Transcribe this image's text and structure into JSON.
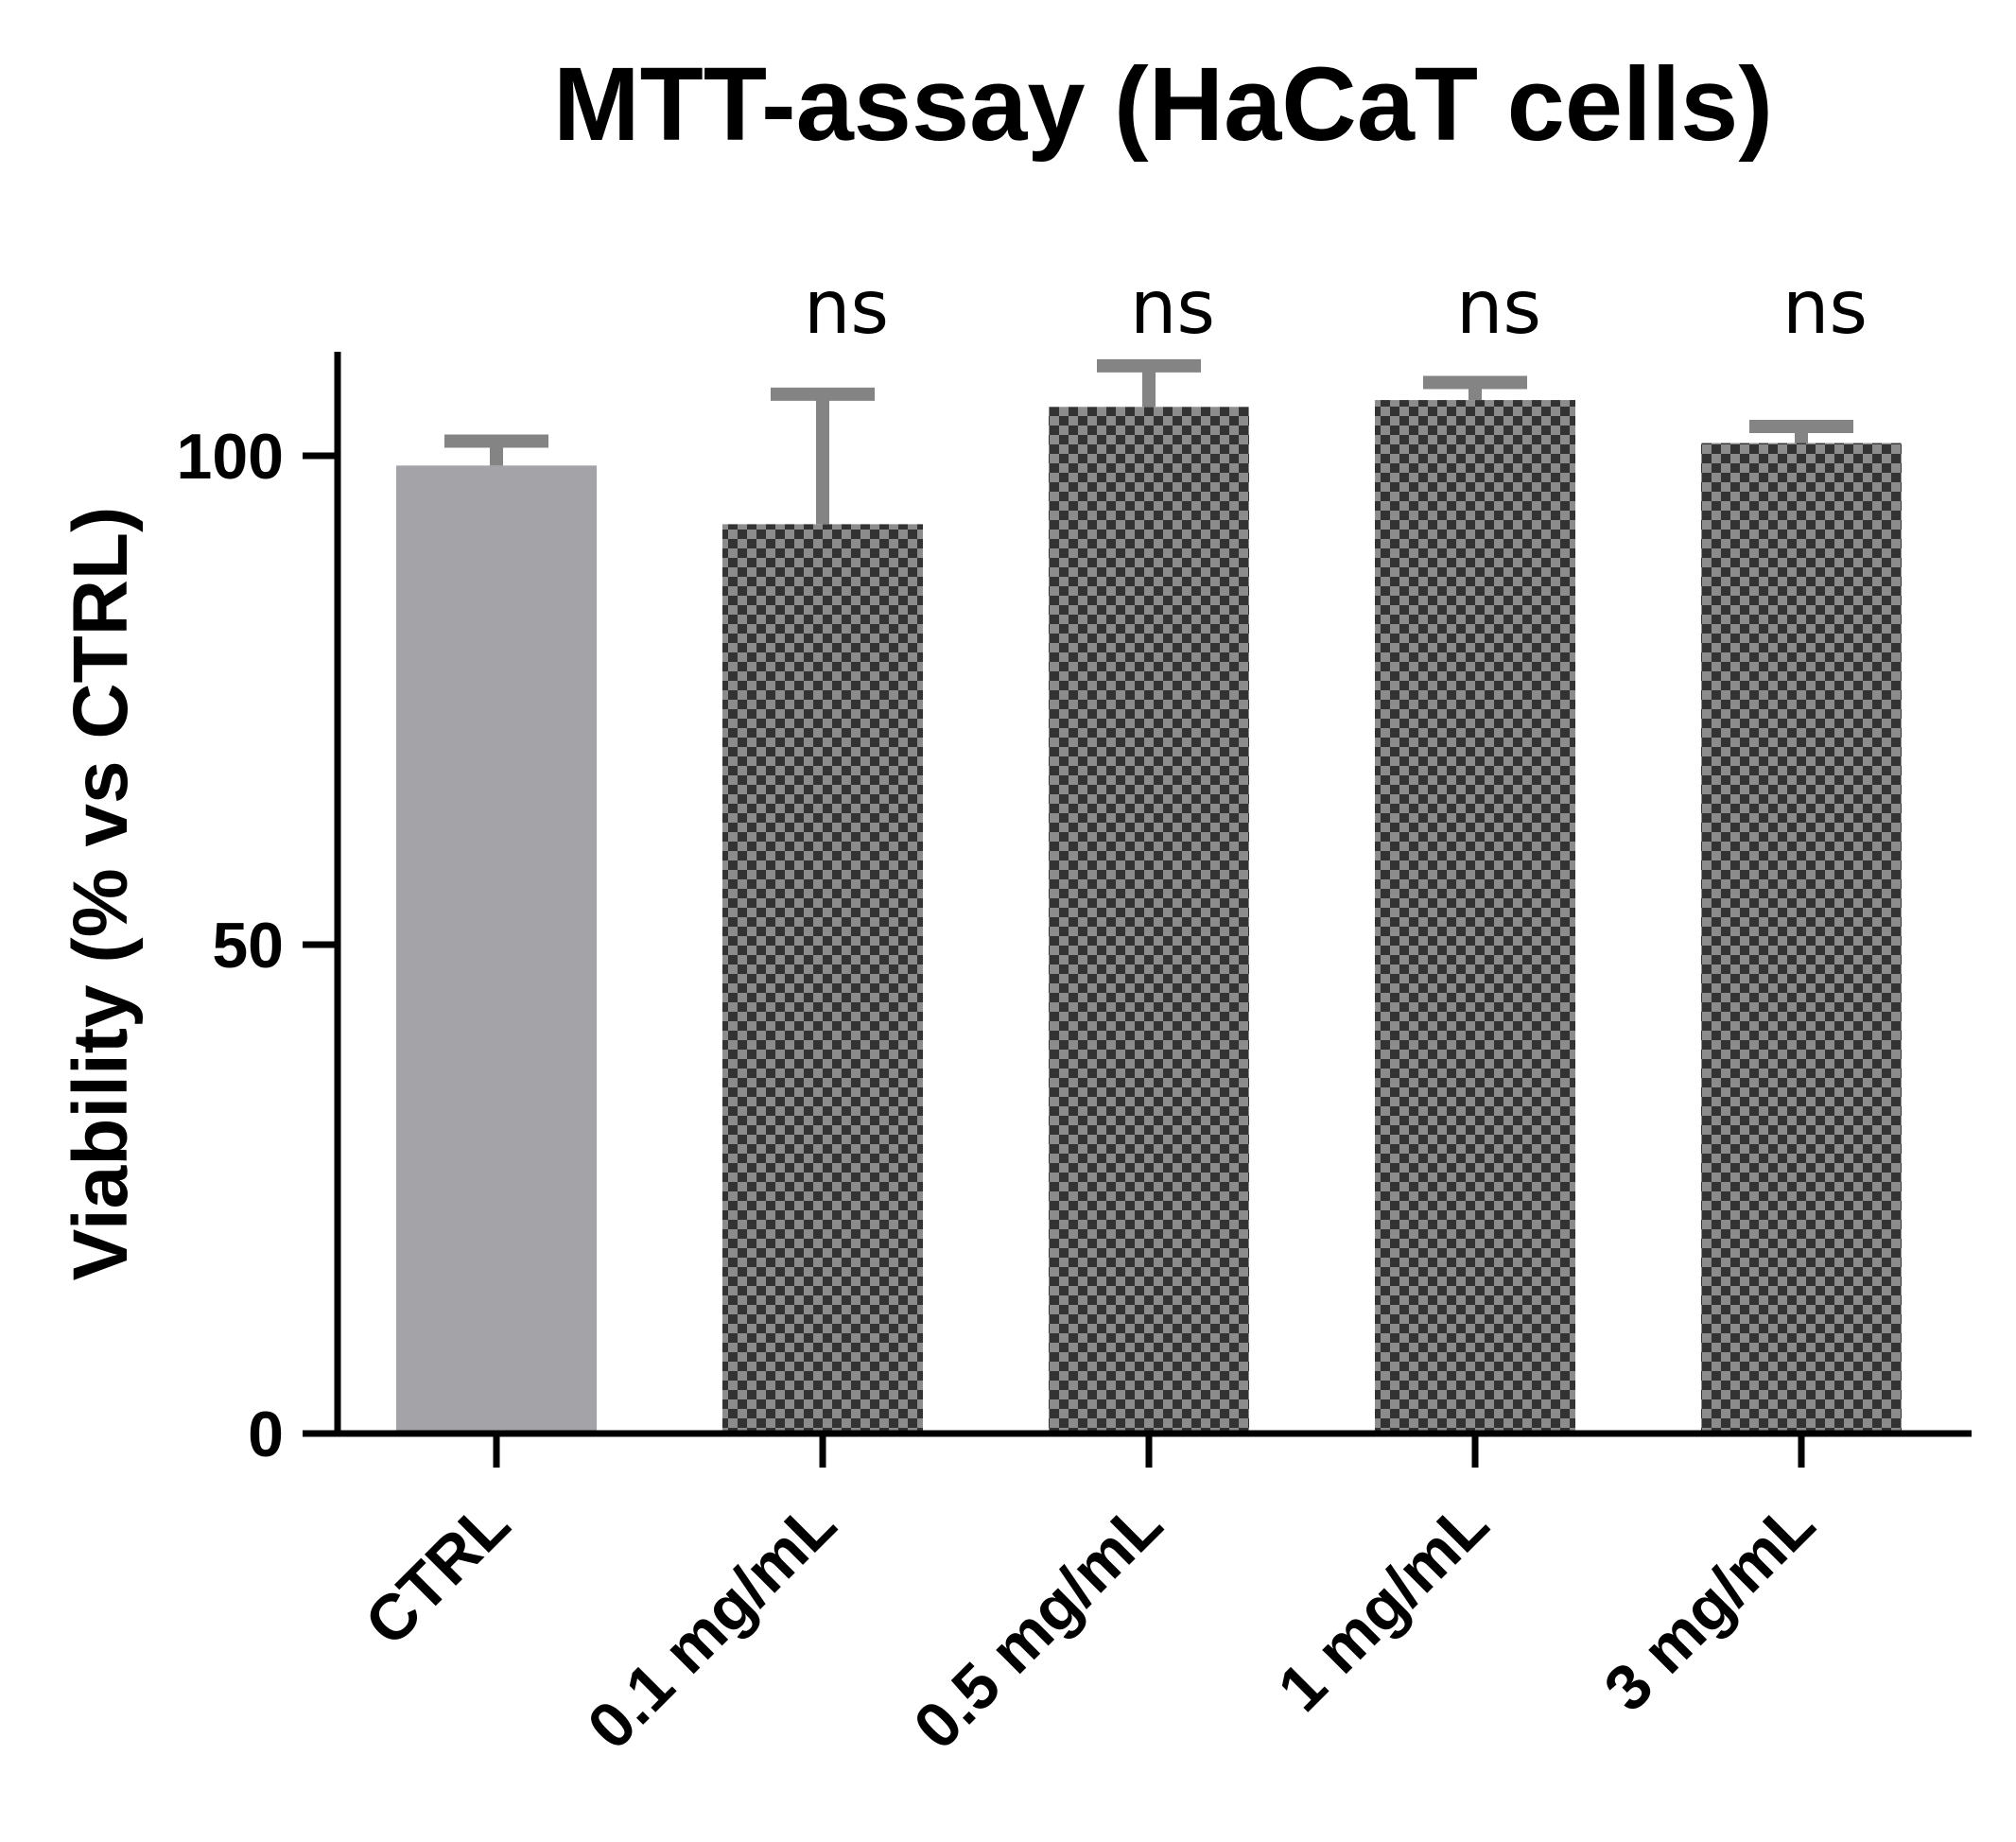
{
  "chart_data": {
    "type": "bar",
    "title": "MTT-assay (HaCaT cells)",
    "xlabel": "",
    "ylabel": "Viability (% vs CTRL)",
    "ylim": [
      0,
      110
    ],
    "yticks": [
      "0",
      "50",
      "100"
    ],
    "ytick_values": [
      0,
      50,
      100
    ],
    "categories": [
      "CTRL",
      "0.1 mg/mL",
      "0.5 mg/mL",
      "1  mg/mL",
      "3 mg/mL"
    ],
    "values": [
      99,
      93,
      105,
      105.7,
      101.3
    ],
    "errors": [
      2.5,
      13.3,
      4.2,
      1.8,
      1.7
    ],
    "annotations": [
      "",
      "ns",
      "ns",
      "ns",
      "ns"
    ],
    "fills": [
      "solid",
      "checker",
      "checker",
      "checker",
      "checker"
    ],
    "colors": {
      "solid": "#a3a3a8",
      "checker_dark": "#333333",
      "checker_light": "#8c8c8c",
      "error_bar": "#848484",
      "axis": "#000000"
    },
    "grid": false
  }
}
